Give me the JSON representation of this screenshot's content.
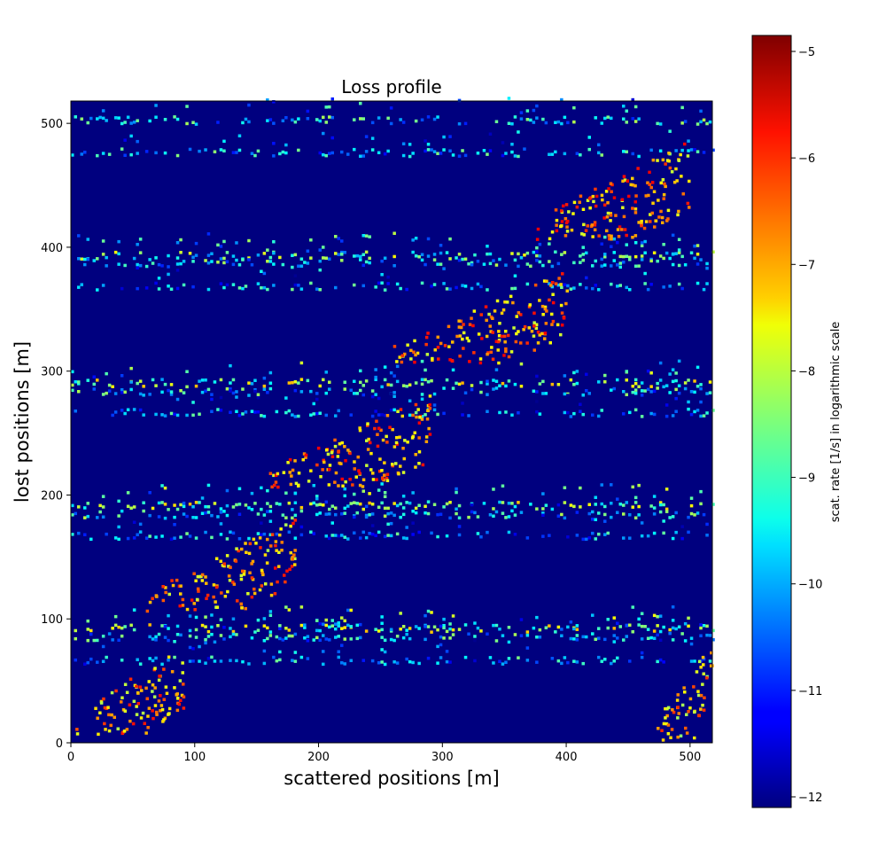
{
  "chart_data": {
    "type": "heatmap",
    "title": "Loss profile",
    "xlabel": "scattered positions [m]",
    "ylabel": "lost positions [m]",
    "xlim": [
      0,
      518
    ],
    "ylim": [
      0,
      518
    ],
    "xticks": [
      0,
      100,
      200,
      300,
      400,
      500
    ],
    "yticks": [
      0,
      100,
      200,
      300,
      400,
      500
    ],
    "colorbar": {
      "label": "scat. rate [1/s] in logarithmic scale",
      "range": [
        -12.1,
        -4.85
      ],
      "ticks": [
        -5,
        -6,
        -7,
        -8,
        -9,
        -10,
        -11,
        -12
      ],
      "colormap": "jet",
      "background_value": -12.1
    },
    "horizontal_bands": [
      {
        "lost_range": [
          0,
          520
        ],
        "lost_pos": 501,
        "scattered_range": [
          0,
          518
        ],
        "level": -9.5
      },
      {
        "lost_range": [
          0,
          520
        ],
        "lost_pos": 475,
        "scattered_range": [
          0,
          518
        ],
        "level": -9.8
      },
      {
        "lost_range": [
          0,
          520
        ],
        "lost_pos": 392,
        "scattered_range": [
          0,
          518
        ],
        "level": -9.0
      },
      {
        "lost_range": [
          0,
          520
        ],
        "lost_pos": 386,
        "scattered_range": [
          0,
          518
        ],
        "level": -9.5
      },
      {
        "lost_range": [
          0,
          520
        ],
        "lost_pos": 367,
        "scattered_range": [
          0,
          518
        ],
        "level": -10.0
      },
      {
        "lost_range": [
          0,
          520
        ],
        "lost_pos": 289,
        "scattered_range": [
          0,
          518
        ],
        "level": -8.5
      },
      {
        "lost_range": [
          0,
          520
        ],
        "lost_pos": 282,
        "scattered_range": [
          0,
          518
        ],
        "level": -9.5
      },
      {
        "lost_range": [
          0,
          520
        ],
        "lost_pos": 265,
        "scattered_range": [
          0,
          518
        ],
        "level": -10.0
      },
      {
        "lost_range": [
          0,
          520
        ],
        "lost_pos": 190,
        "scattered_range": [
          0,
          518
        ],
        "level": -8.5
      },
      {
        "lost_range": [
          0,
          520
        ],
        "lost_pos": 183,
        "scattered_range": [
          0,
          518
        ],
        "level": -9.5
      },
      {
        "lost_range": [
          0,
          520
        ],
        "lost_pos": 166,
        "scattered_range": [
          0,
          518
        ],
        "level": -10.0
      },
      {
        "lost_range": [
          0,
          520
        ],
        "lost_pos": 91,
        "scattered_range": [
          0,
          518
        ],
        "level": -8.5
      },
      {
        "lost_range": [
          0,
          520
        ],
        "lost_pos": 84,
        "scattered_range": [
          0,
          518
        ],
        "level": -9.5
      },
      {
        "lost_range": [
          0,
          520
        ],
        "lost_pos": 65,
        "scattered_range": [
          0,
          518
        ],
        "level": -10.0
      }
    ],
    "diagonal_clusters": [
      {
        "scattered_range": [
          0,
          90
        ],
        "lost_range": [
          10,
          70
        ],
        "level": -7.0
      },
      {
        "scattered_range": [
          60,
          180
        ],
        "lost_range": [
          110,
          170
        ],
        "level": -7.0
      },
      {
        "scattered_range": [
          160,
          290
        ],
        "lost_range": [
          210,
          270
        ],
        "level": -6.8
      },
      {
        "scattered_range": [
          260,
          400
        ],
        "lost_range": [
          310,
          370
        ],
        "level": -6.8
      },
      {
        "scattered_range": [
          370,
          500
        ],
        "lost_range": [
          410,
          475
        ],
        "level": -6.8
      },
      {
        "scattered_range": [
          470,
          518
        ],
        "lost_range": [
          5,
          70
        ],
        "level": -7.2
      }
    ]
  }
}
